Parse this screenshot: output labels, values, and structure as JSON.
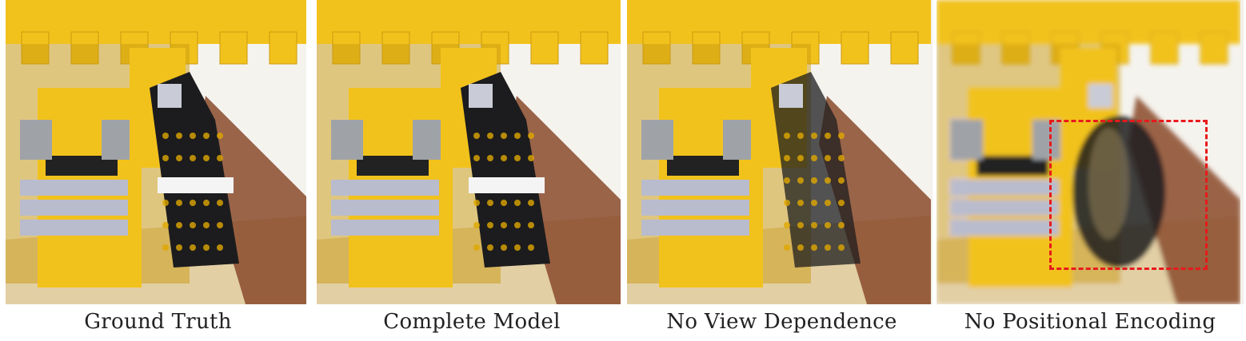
{
  "figure": {
    "panels": [
      {
        "caption": "Ground Truth",
        "variant": "sharp"
      },
      {
        "caption": "Complete Model",
        "variant": "sharp"
      },
      {
        "caption": "No View Dependence",
        "variant": "dull"
      },
      {
        "caption": "No Positional Encoding",
        "variant": "blurry"
      }
    ],
    "highlight_panel_index": 3,
    "highlight_color": "#e8191b",
    "palette": {
      "lego_yellow": "#f2c21c",
      "lego_yellow_dark": "#c99a10",
      "lego_grey": "#b9bccd",
      "tread_black": "#1c1c1e",
      "baseplate_tan": "#e2cfa4",
      "brick_brown": "#8a4a2c"
    }
  }
}
